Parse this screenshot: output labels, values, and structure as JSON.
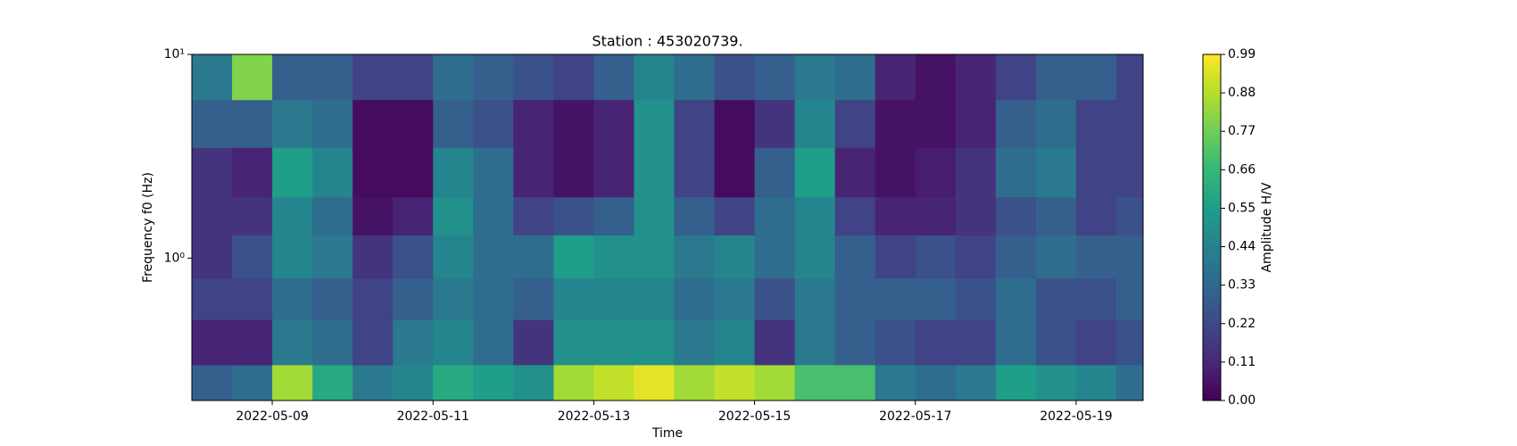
{
  "chart_data": {
    "type": "heatmap",
    "title": "Station : 453020739.",
    "xlabel": "Time",
    "ylabel": "Frequency f0 (Hz)",
    "colorbar_label": "Amplitude H/V",
    "x": [
      "2022-05-08T00:00",
      "2022-05-08T12:00",
      "2022-05-09T00:00",
      "2022-05-09T12:00",
      "2022-05-10T00:00",
      "2022-05-10T12:00",
      "2022-05-11T00:00",
      "2022-05-11T12:00",
      "2022-05-12T00:00",
      "2022-05-12T12:00",
      "2022-05-13T00:00",
      "2022-05-13T12:00",
      "2022-05-14T00:00",
      "2022-05-14T12:00",
      "2022-05-15T00:00",
      "2022-05-15T12:00",
      "2022-05-16T00:00",
      "2022-05-16T12:00",
      "2022-05-17T00:00",
      "2022-05-17T12:00",
      "2022-05-18T00:00",
      "2022-05-18T12:00",
      "2022-05-19T00:00",
      "2022-05-19T12:00"
    ],
    "xlim": [
      "2022-05-08T00:00",
      "2022-05-19T20:00"
    ],
    "xticks": [
      "2022-05-09",
      "2022-05-11",
      "2022-05-13",
      "2022-05-15",
      "2022-05-17",
      "2022-05-19"
    ],
    "y_bins": [
      0.2,
      0.3,
      0.5,
      0.8,
      1.3,
      2,
      3.5,
      6,
      10
    ],
    "yscale": "log",
    "ylim": [
      0.2,
      10
    ],
    "yticks": [
      {
        "value": 1,
        "label": "10⁰"
      },
      {
        "value": 10,
        "label": "10¹"
      }
    ],
    "values": [
      [
        0.3,
        0.35,
        0.85,
        0.6,
        0.4,
        0.45,
        0.6,
        0.55,
        0.5,
        0.85,
        0.9,
        0.95,
        0.85,
        0.9,
        0.85,
        0.7,
        0.7,
        0.4,
        0.35,
        0.4,
        0.55,
        0.5,
        0.45,
        0.35
      ],
      [
        0.1,
        0.1,
        0.4,
        0.35,
        0.2,
        0.4,
        0.45,
        0.35,
        0.15,
        0.5,
        0.5,
        0.5,
        0.4,
        0.45,
        0.15,
        0.4,
        0.3,
        0.25,
        0.2,
        0.2,
        0.35,
        0.25,
        0.2,
        0.25
      ],
      [
        0.2,
        0.2,
        0.35,
        0.3,
        0.2,
        0.3,
        0.4,
        0.35,
        0.3,
        0.45,
        0.45,
        0.45,
        0.35,
        0.4,
        0.25,
        0.4,
        0.3,
        0.3,
        0.3,
        0.25,
        0.35,
        0.25,
        0.25,
        0.3
      ],
      [
        0.15,
        0.25,
        0.45,
        0.4,
        0.15,
        0.25,
        0.45,
        0.35,
        0.35,
        0.55,
        0.5,
        0.5,
        0.4,
        0.45,
        0.35,
        0.45,
        0.3,
        0.2,
        0.25,
        0.2,
        0.3,
        0.35,
        0.3,
        0.3
      ],
      [
        0.15,
        0.15,
        0.45,
        0.35,
        0.05,
        0.1,
        0.5,
        0.35,
        0.2,
        0.25,
        0.3,
        0.5,
        0.3,
        0.2,
        0.35,
        0.45,
        0.2,
        0.1,
        0.1,
        0.15,
        0.25,
        0.3,
        0.2,
        0.25
      ],
      [
        0.15,
        0.1,
        0.55,
        0.45,
        0.03,
        0.03,
        0.45,
        0.35,
        0.1,
        0.05,
        0.1,
        0.5,
        0.2,
        0.03,
        0.3,
        0.55,
        0.1,
        0.05,
        0.08,
        0.15,
        0.35,
        0.4,
        0.2,
        0.2
      ],
      [
        0.3,
        0.3,
        0.4,
        0.35,
        0.03,
        0.03,
        0.3,
        0.25,
        0.1,
        0.05,
        0.1,
        0.5,
        0.2,
        0.03,
        0.15,
        0.45,
        0.2,
        0.05,
        0.05,
        0.1,
        0.3,
        0.35,
        0.2,
        0.2
      ],
      [
        0.4,
        0.8,
        0.3,
        0.3,
        0.2,
        0.2,
        0.35,
        0.3,
        0.25,
        0.2,
        0.3,
        0.45,
        0.35,
        0.25,
        0.3,
        0.4,
        0.35,
        0.1,
        0.05,
        0.1,
        0.2,
        0.3,
        0.3,
        0.2
      ]
    ],
    "clim": [
      0,
      0.99
    ],
    "cticks": [
      {
        "value": 0,
        "label": "0.00"
      },
      0.11,
      0.22,
      0.33,
      0.44,
      0.55,
      0.66,
      0.77,
      0.88,
      0.99
    ],
    "colormap": [
      "#440154",
      "#482878",
      "#3e4989",
      "#31688e",
      "#26828e",
      "#1f9e89",
      "#35b779",
      "#6ece58",
      "#b5de2b",
      "#fde725"
    ]
  }
}
